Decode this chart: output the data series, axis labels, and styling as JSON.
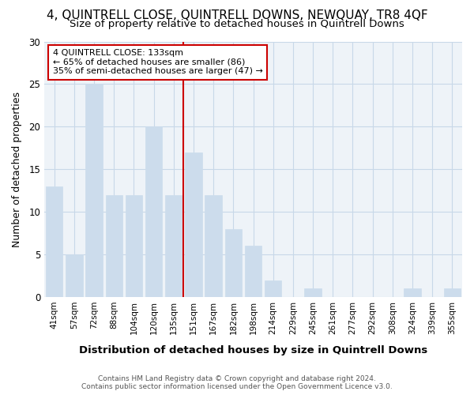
{
  "title": "4, QUINTRELL CLOSE, QUINTRELL DOWNS, NEWQUAY, TR8 4QF",
  "subtitle": "Size of property relative to detached houses in Quintrell Downs",
  "xlabel": "Distribution of detached houses by size in Quintrell Downs",
  "ylabel": "Number of detached properties",
  "categories": [
    "41sqm",
    "57sqm",
    "72sqm",
    "88sqm",
    "104sqm",
    "120sqm",
    "135sqm",
    "151sqm",
    "167sqm",
    "182sqm",
    "198sqm",
    "214sqm",
    "229sqm",
    "245sqm",
    "261sqm",
    "277sqm",
    "292sqm",
    "308sqm",
    "324sqm",
    "339sqm",
    "355sqm"
  ],
  "values": [
    13,
    5,
    25,
    12,
    12,
    20,
    12,
    17,
    12,
    8,
    6,
    2,
    0,
    1,
    0,
    0,
    0,
    0,
    1,
    0,
    1
  ],
  "bar_color": "#ccdcec",
  "bar_edge_color": "#ccdcec",
  "vline_x": 6.5,
  "vline_color": "#cc0000",
  "annotation_text": "4 QUINTRELL CLOSE: 133sqm\n← 65% of detached houses are smaller (86)\n35% of semi-detached houses are larger (47) →",
  "annotation_box_color": "#ffffff",
  "annotation_box_edge": "#cc0000",
  "ylim": [
    0,
    30
  ],
  "yticks": [
    0,
    5,
    10,
    15,
    20,
    25,
    30
  ],
  "footer_text": "Contains HM Land Registry data © Crown copyright and database right 2024.\nContains public sector information licensed under the Open Government Licence v3.0.",
  "title_fontsize": 11,
  "subtitle_fontsize": 9.5,
  "xlabel_fontsize": 9.5,
  "ylabel_fontsize": 9,
  "bg_color": "#ffffff",
  "plot_bg_color": "#eef3f8",
  "grid_color": "#c8d8e8"
}
